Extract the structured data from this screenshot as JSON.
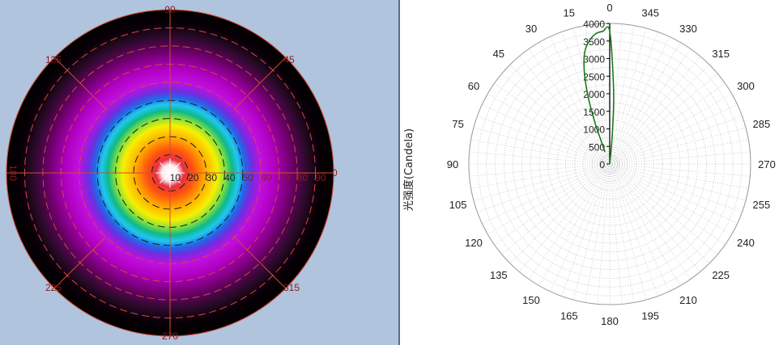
{
  "left_panel": {
    "angle_labels": [
      "90",
      "135",
      "45",
      "180",
      "0",
      "225",
      "315",
      "270"
    ],
    "radial_labels": [
      "10",
      "20",
      "30",
      "40",
      "50",
      "60",
      "70",
      "80",
      "90"
    ],
    "colors": {
      "background": "#b0c4de",
      "grid_red": "#d24a3a",
      "ring_black": "#000000"
    }
  },
  "right_panel": {
    "ylabel": "光强度(Candela)",
    "angle_labels": [
      "0",
      "15",
      "30",
      "45",
      "60",
      "75",
      "90",
      "105",
      "120",
      "135",
      "150",
      "165",
      "180",
      "195",
      "210",
      "225",
      "240",
      "255",
      "270",
      "285",
      "300",
      "315",
      "330",
      "345"
    ],
    "radial_ticks": [
      "0",
      "500",
      "1000",
      "1500",
      "2000",
      "2500",
      "3000",
      "3500",
      "4000"
    ]
  },
  "chart_data": [
    {
      "type": "heatmap",
      "subtype": "polar-false-color",
      "theta_labels_deg": [
        0,
        45,
        90,
        135,
        180,
        225,
        270,
        315
      ],
      "radial_axis": {
        "ticks": [
          10,
          20,
          30,
          40,
          50,
          60,
          70,
          80,
          90
        ],
        "range": [
          0,
          90
        ]
      },
      "color_scale": [
        "white",
        "red",
        "orange",
        "yellow",
        "green",
        "cyan",
        "blue",
        "magenta",
        "purple",
        "black"
      ],
      "grid": true
    },
    {
      "type": "line",
      "subtype": "polar",
      "ylabel": "光强度(Candela)",
      "rlim": [
        0,
        4000
      ],
      "r_ticks": [
        0,
        500,
        1000,
        1500,
        2000,
        2500,
        3000,
        3500,
        4000
      ],
      "theta_ticks_deg": [
        0,
        15,
        30,
        45,
        60,
        75,
        90,
        105,
        120,
        135,
        150,
        165,
        180,
        195,
        210,
        225,
        240,
        255,
        270,
        285,
        300,
        315,
        330,
        345
      ],
      "theta_direction": "counterclockwise",
      "theta_zero": "top",
      "series": [
        {
          "color": "#1a7a1a",
          "theta_deg": [
            -7,
            -5,
            -3,
            0,
            3,
            6,
            9,
            12,
            14,
            16,
            18,
            19.5,
            20,
            20.2,
            20.8,
            21.5
          ],
          "r": [
            0,
            850,
            2100,
            3780,
            3780,
            3730,
            3580,
            3330,
            3020,
            2560,
            1930,
            1290,
            1030,
            780,
            540,
            370
          ]
        }
      ],
      "grid": true
    }
  ]
}
